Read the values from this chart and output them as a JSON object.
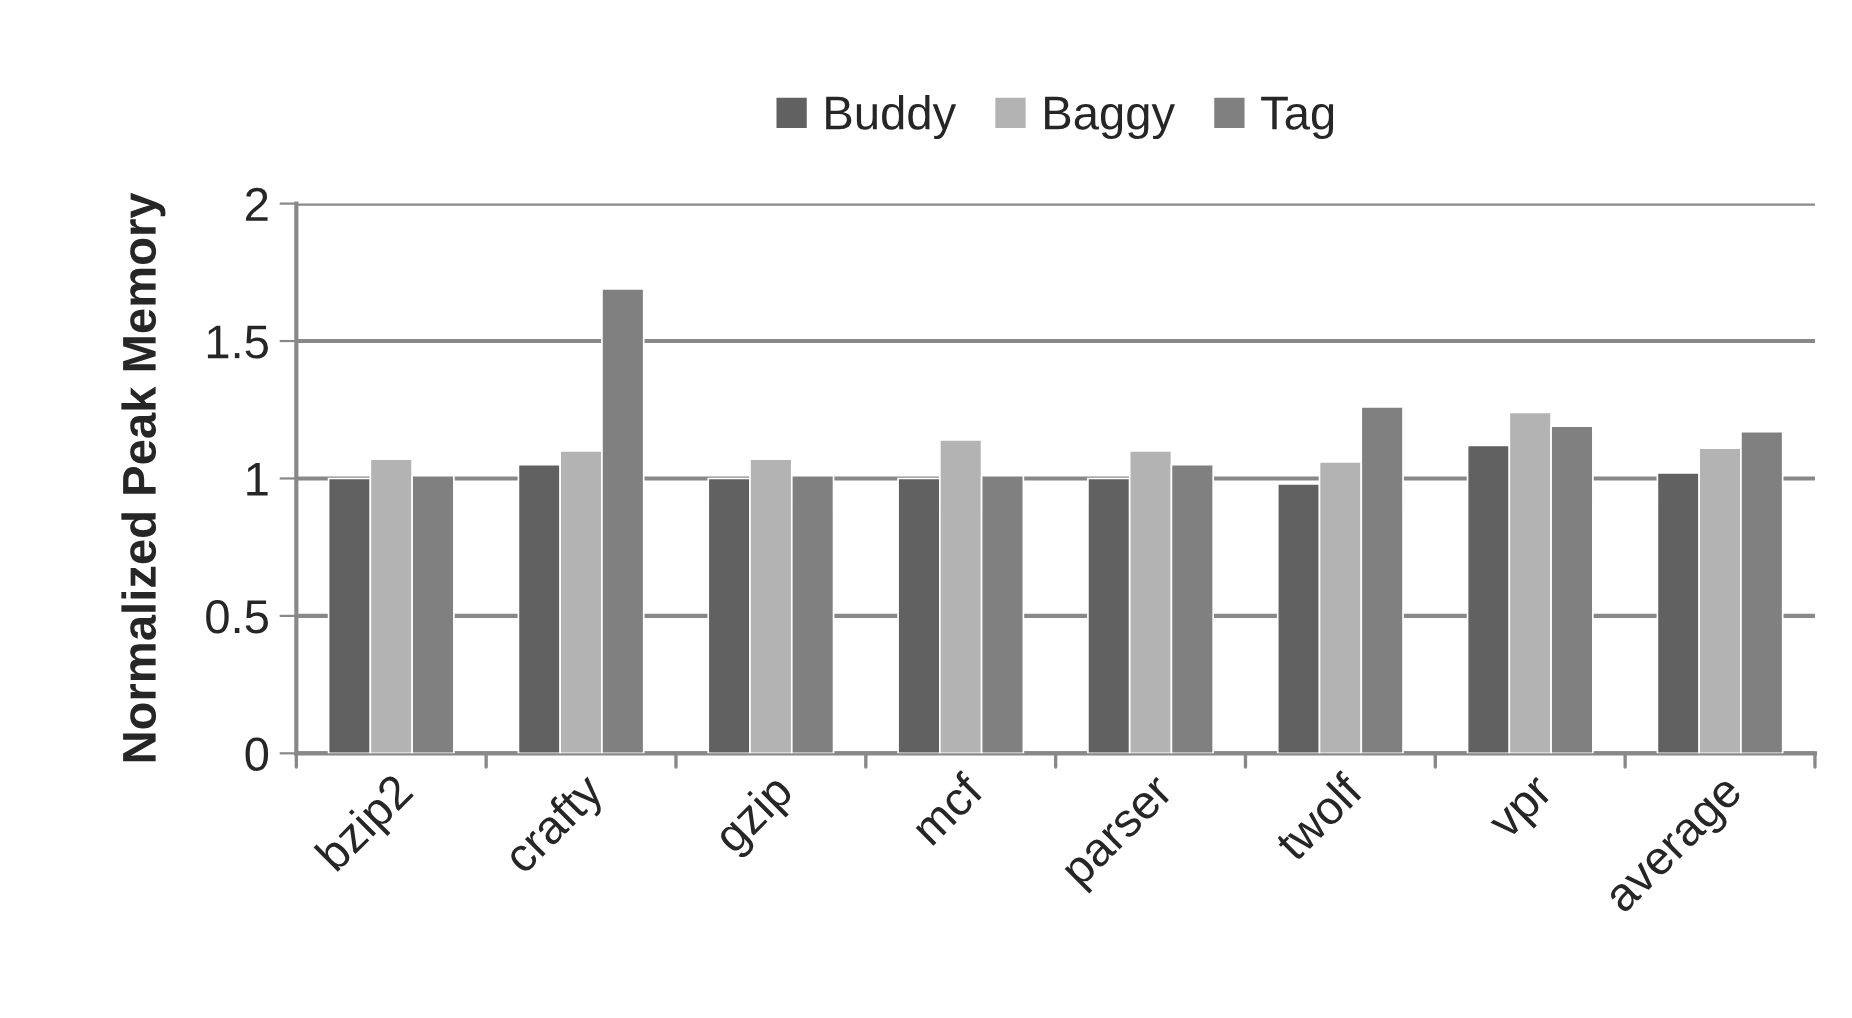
{
  "chart_data": {
    "type": "bar",
    "ylabel": "Normalized Peak Memory",
    "categories": [
      "bzip2",
      "crafty",
      "gzip",
      "mcf",
      "parser",
      "twolf",
      "vpr",
      "average"
    ],
    "series": [
      {
        "name": "Buddy",
        "color": "#616161",
        "values": [
          1.0,
          1.05,
          1.0,
          1.0,
          1.0,
          0.98,
          1.12,
          1.02
        ]
      },
      {
        "name": "Baggy",
        "color": "#b3b3b3",
        "values": [
          1.07,
          1.1,
          1.07,
          1.14,
          1.1,
          1.06,
          1.24,
          1.11
        ]
      },
      {
        "name": "Tag",
        "color": "#808080",
        "values": [
          1.01,
          1.69,
          1.01,
          1.01,
          1.05,
          1.26,
          1.19,
          1.17
        ]
      }
    ],
    "ylim": [
      0,
      2
    ],
    "yticks": [
      0,
      0.5,
      1,
      1.5,
      2
    ],
    "grid": "y",
    "legend": "top"
  }
}
